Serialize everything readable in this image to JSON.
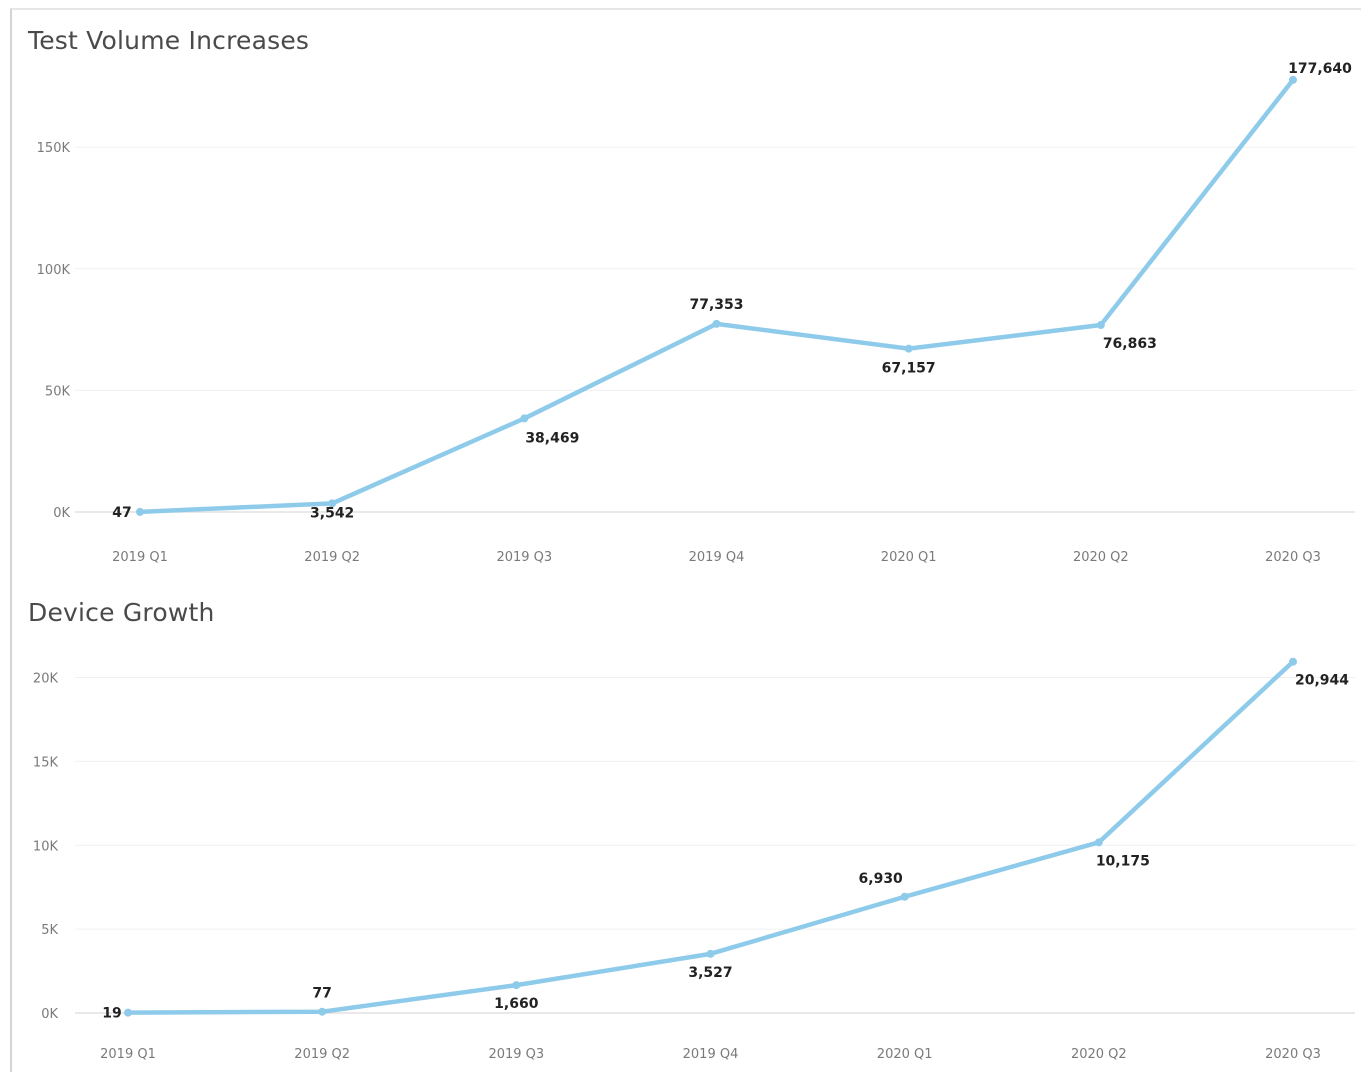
{
  "colors": {
    "series": "#8ecbea",
    "grid": "#f0f0f0",
    "text": "#222222",
    "axis_text": "#7a7a7a"
  },
  "chart_data": [
    {
      "type": "line",
      "title": "Test Volume Increases",
      "categories": [
        "2019 Q1",
        "2019 Q2",
        "2019 Q3",
        "2019 Q4",
        "2020 Q1",
        "2020 Q2",
        "2020 Q3"
      ],
      "series": [
        {
          "values": [
            47,
            3542,
            38469,
            77353,
            67157,
            76863,
            177640
          ]
        }
      ],
      "data_labels": [
        "47",
        "3,542",
        "38,469",
        "77,353",
        "67,157",
        "76,863",
        "177,640"
      ],
      "y_ticks": [
        0,
        50000,
        100000,
        150000
      ],
      "y_tick_labels": [
        "0K",
        "50K",
        "100K",
        "150K"
      ],
      "ylim": [
        0,
        185000
      ],
      "grid": true,
      "legend": "none",
      "xlabel": "",
      "ylabel": ""
    },
    {
      "type": "line",
      "title": "Device Growth",
      "categories": [
        "2019 Q1",
        "2019 Q2",
        "2019 Q3",
        "2019 Q4",
        "2020 Q1",
        "2020 Q2",
        "2020 Q3"
      ],
      "series": [
        {
          "values": [
            19,
            77,
            1660,
            3527,
            6930,
            10175,
            20944
          ]
        }
      ],
      "data_labels": [
        "19",
        "77",
        "1,660",
        "3,527",
        "6,930",
        "10,175",
        "20,944"
      ],
      "y_ticks": [
        0,
        5000,
        10000,
        15000,
        20000
      ],
      "y_tick_labels": [
        "0K",
        "5K",
        "10K",
        "15K",
        "20K"
      ],
      "ylim": [
        0,
        22000
      ],
      "grid": true,
      "legend": "none",
      "xlabel": "",
      "ylabel": ""
    }
  ]
}
